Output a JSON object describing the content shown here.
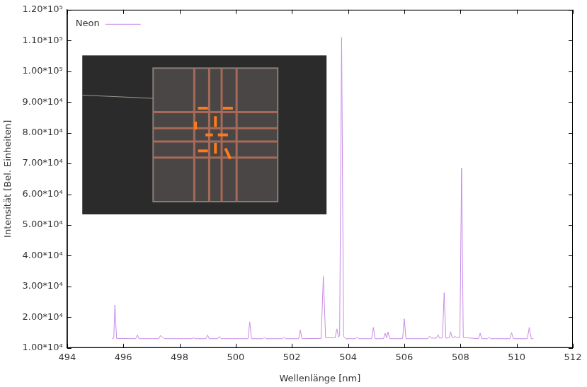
{
  "chart_data": {
    "type": "line",
    "x_label": "Wellenlänge [nm]",
    "y_label": "Intensität [Bel. Einheiten]",
    "xlim": [
      494,
      512
    ],
    "xticks": [
      494,
      496,
      498,
      500,
      502,
      504,
      506,
      508,
      510,
      512
    ],
    "ylim": [
      10000,
      120000
    ],
    "yticks": [
      {
        "value": 10000,
        "label": "1.00*10⁴"
      },
      {
        "value": 20000,
        "label": "2.00*10⁴"
      },
      {
        "value": 30000,
        "label": "3.00*10⁴"
      },
      {
        "value": 40000,
        "label": "4.00*10⁴"
      },
      {
        "value": 50000,
        "label": "5.00*10⁴"
      },
      {
        "value": 60000,
        "label": "6.00*10⁴"
      },
      {
        "value": 70000,
        "label": "7.00*10⁴"
      },
      {
        "value": 80000,
        "label": "8.00*10⁴"
      },
      {
        "value": 90000,
        "label": "9.00*10⁴"
      },
      {
        "value": 100000,
        "label": "1.00*10⁵"
      },
      {
        "value": 110000,
        "label": "1.10*10⁵"
      },
      {
        "value": 120000,
        "label": "1.20*10⁵"
      }
    ],
    "grid": false,
    "legend": "upper left",
    "x": [
      495.6,
      495.66,
      495.7,
      495.76,
      496.44,
      496.5,
      496.56,
      497.26,
      497.32,
      497.4,
      497.48,
      498.44,
      498.5,
      498.56,
      498.94,
      499.0,
      499.06,
      499.36,
      499.42,
      499.48,
      500.44,
      500.5,
      500.56,
      500.96,
      501.02,
      501.08,
      501.66,
      501.72,
      501.78,
      502.24,
      502.3,
      502.36,
      503.04,
      503.12,
      503.2,
      503.54,
      503.6,
      503.66,
      503.7,
      503.77,
      503.84,
      503.92,
      504.26,
      504.32,
      504.38,
      504.84,
      504.9,
      504.96,
      505.26,
      505.32,
      505.37,
      505.42,
      505.48,
      505.94,
      506.0,
      506.06,
      506.84,
      506.9,
      506.96,
      507.14,
      507.2,
      507.26,
      507.36,
      507.42,
      507.48,
      507.6,
      507.65,
      507.7,
      507.76,
      507.8,
      507.86,
      507.98,
      508.04,
      508.1,
      508.64,
      508.7,
      508.76,
      508.96,
      509.02,
      509.08,
      509.76,
      509.82,
      509.88,
      510.38,
      510.45,
      510.52,
      510.6
    ],
    "series": [
      {
        "name": "Neon",
        "color": "#c78be8",
        "line_style": "solid",
        "values": [
          13000,
          13200,
          24000,
          13100,
          13000,
          14200,
          13000,
          13000,
          14000,
          13500,
          13000,
          13000,
          13300,
          13000,
          13000,
          14200,
          13000,
          13000,
          13700,
          13000,
          13000,
          18500,
          13000,
          13000,
          13400,
          13000,
          13000,
          13500,
          13000,
          13000,
          15800,
          13000,
          13100,
          33300,
          13300,
          13300,
          16200,
          13500,
          14000,
          111000,
          13800,
          13000,
          13000,
          13500,
          13000,
          13000,
          16700,
          13000,
          13000,
          14800,
          13300,
          15200,
          13000,
          13000,
          19500,
          13000,
          13000,
          13800,
          13200,
          13200,
          14300,
          13200,
          13300,
          28000,
          13200,
          13300,
          15300,
          13400,
          13300,
          13800,
          13400,
          13400,
          68500,
          13400,
          13000,
          14800,
          13000,
          13000,
          13500,
          13000,
          13000,
          15000,
          13000,
          13000,
          16700,
          13000,
          13000
        ]
      }
    ]
  }
}
